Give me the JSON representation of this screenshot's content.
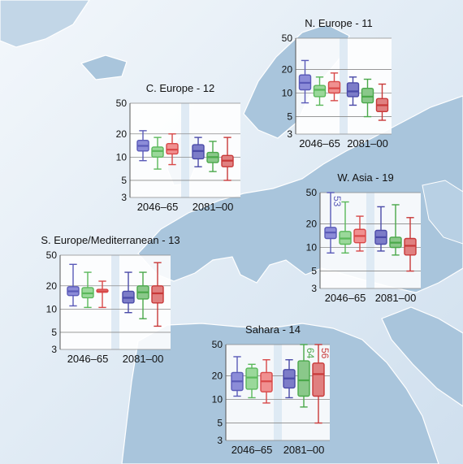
{
  "figure": {
    "colors": {
      "ocean": "#dde9f3",
      "land": "#a9c5dc",
      "series_2046_65": [
        "#5a5ab8",
        "#5ab85a",
        "#d84848"
      ],
      "fill_2046_65": [
        "#8c8cd8",
        "#9ad89a",
        "#f09090"
      ],
      "series_2081_00": [
        "#4a4aa8",
        "#4aa84a",
        "#c83838"
      ],
      "fill_2081_00": [
        "#7c7cc8",
        "#8ac88a",
        "#e08080"
      ]
    }
  },
  "chart_data": [
    {
      "type": "box",
      "title": "N. Europe - 11",
      "categories": [
        "2046–65",
        "2081–00"
      ],
      "y_scale": "log",
      "ylim": [
        3,
        50
      ],
      "yticks": [
        3,
        5,
        10,
        20,
        50
      ],
      "ytick_labels": [
        "3",
        "5",
        "10",
        "20",
        "50"
      ],
      "outliers": [],
      "series": [
        {
          "boxes": [
            {
              "min": 7.5,
              "q1": 11,
              "median": 13.5,
              "q3": 17,
              "max": 26
            },
            {
              "min": 7,
              "q1": 9,
              "median": 11,
              "q3": 12.5,
              "max": 16
            },
            {
              "min": 8,
              "q1": 10,
              "median": 11.5,
              "q3": 14,
              "max": 18
            }
          ]
        },
        {
          "boxes": [
            {
              "min": 7,
              "q1": 9,
              "median": 10.5,
              "q3": 13.5,
              "max": 16
            },
            {
              "min": 5,
              "q1": 7.5,
              "median": 9,
              "q3": 11.5,
              "max": 15
            },
            {
              "min": 4.5,
              "q1": 5.8,
              "median": 7,
              "q3": 8.5,
              "max": 13
            }
          ]
        }
      ]
    },
    {
      "type": "box",
      "title": "C. Europe - 12",
      "categories": [
        "2046–65",
        "2081–00"
      ],
      "y_scale": "log",
      "ylim": [
        3,
        50
      ],
      "yticks": [
        3,
        5,
        10,
        20,
        50
      ],
      "ytick_labels": [
        "3",
        "5",
        "10",
        "20",
        "50"
      ],
      "outliers": [],
      "series": [
        {
          "boxes": [
            {
              "min": 9,
              "q1": 12,
              "median": 14,
              "q3": 16.5,
              "max": 22
            },
            {
              "min": 7,
              "q1": 10,
              "median": 12,
              "q3": 13.5,
              "max": 18
            },
            {
              "min": 8,
              "q1": 11,
              "median": 12.5,
              "q3": 15,
              "max": 20
            }
          ]
        },
        {
          "boxes": [
            {
              "min": 7.5,
              "q1": 9.5,
              "median": 12,
              "q3": 14.5,
              "max": 18
            },
            {
              "min": 6.5,
              "q1": 8.5,
              "median": 10,
              "q3": 11.5,
              "max": 16
            },
            {
              "min": 5,
              "q1": 7.5,
              "median": 9,
              "q3": 10.5,
              "max": 18
            }
          ]
        }
      ]
    },
    {
      "type": "box",
      "title": "W. Asia - 19",
      "categories": [
        "2046–65",
        "2081–00"
      ],
      "y_scale": "log",
      "ylim": [
        3,
        50
      ],
      "yticks": [
        3,
        5,
        10,
        20,
        50
      ],
      "ytick_labels": [
        "3",
        "5",
        "10",
        "20",
        "50"
      ],
      "outliers": [
        {
          "period": 0,
          "series": 0,
          "label": "53"
        }
      ],
      "series": [
        {
          "boxes": [
            {
              "min": 8.5,
              "q1": 13,
              "median": 15.5,
              "q3": 18,
              "max": 50
            },
            {
              "min": 8.5,
              "q1": 11,
              "median": 13,
              "q3": 16,
              "max": 38
            },
            {
              "min": 9,
              "q1": 11.5,
              "median": 14,
              "q3": 17,
              "max": 25
            }
          ]
        },
        {
          "boxes": [
            {
              "min": 9,
              "q1": 11,
              "median": 13.5,
              "q3": 16.5,
              "max": 33
            },
            {
              "min": 8,
              "q1": 10,
              "median": 11.5,
              "q3": 13.5,
              "max": 35
            },
            {
              "min": 5,
              "q1": 8,
              "median": 10.5,
              "q3": 13,
              "max": 24
            }
          ]
        }
      ]
    },
    {
      "type": "box",
      "title": "S. Europe/Mediterranean - 13",
      "categories": [
        "2046–65",
        "2081–00"
      ],
      "y_scale": "log",
      "ylim": [
        3,
        50
      ],
      "yticks": [
        3,
        5,
        10,
        20,
        50
      ],
      "ytick_labels": [
        "3",
        "5",
        "10",
        "20",
        "50"
      ],
      "outliers": [],
      "series": [
        {
          "boxes": [
            {
              "min": 11,
              "q1": 15,
              "median": 17,
              "q3": 19.5,
              "max": 38
            },
            {
              "min": 10.5,
              "q1": 14,
              "median": 16,
              "q3": 19,
              "max": 30
            },
            {
              "min": 10.5,
              "q1": 16.5,
              "median": 17,
              "q3": 18,
              "max": 23
            }
          ]
        },
        {
          "boxes": [
            {
              "min": 9,
              "q1": 12,
              "median": 14,
              "q3": 17,
              "max": 30
            },
            {
              "min": 7.5,
              "q1": 13.5,
              "median": 16.5,
              "q3": 20,
              "max": 30
            },
            {
              "min": 6,
              "q1": 12,
              "median": 16,
              "q3": 20,
              "max": 40
            }
          ]
        }
      ]
    },
    {
      "type": "box",
      "title": "Sahara - 14",
      "categories": [
        "2046–65",
        "2081–00"
      ],
      "y_scale": "log",
      "ylim": [
        3,
        50
      ],
      "yticks": [
        3,
        5,
        10,
        20,
        50
      ],
      "ytick_labels": [
        "3",
        "5",
        "10",
        "20",
        "50"
      ],
      "outliers": [
        {
          "period": 1,
          "series": 1,
          "label": "64"
        },
        {
          "period": 1,
          "series": 2,
          "label": "56"
        }
      ],
      "series": [
        {
          "boxes": [
            {
              "min": 11,
              "q1": 13,
              "median": 17,
              "q3": 22,
              "max": 35
            },
            {
              "min": 10.5,
              "q1": 13.5,
              "median": 19,
              "q3": 25,
              "max": 28
            },
            {
              "min": 9,
              "q1": 12.5,
              "median": 17,
              "q3": 22,
              "max": 32
            }
          ]
        },
        {
          "boxes": [
            {
              "min": 10.5,
              "q1": 14,
              "median": 18.5,
              "q3": 24,
              "max": 32
            },
            {
              "min": 8,
              "q1": 11,
              "median": 17.5,
              "q3": 31,
              "max": 50
            },
            {
              "min": 5,
              "q1": 11,
              "median": 21,
              "q3": 29,
              "max": 50
            }
          ]
        }
      ]
    }
  ]
}
